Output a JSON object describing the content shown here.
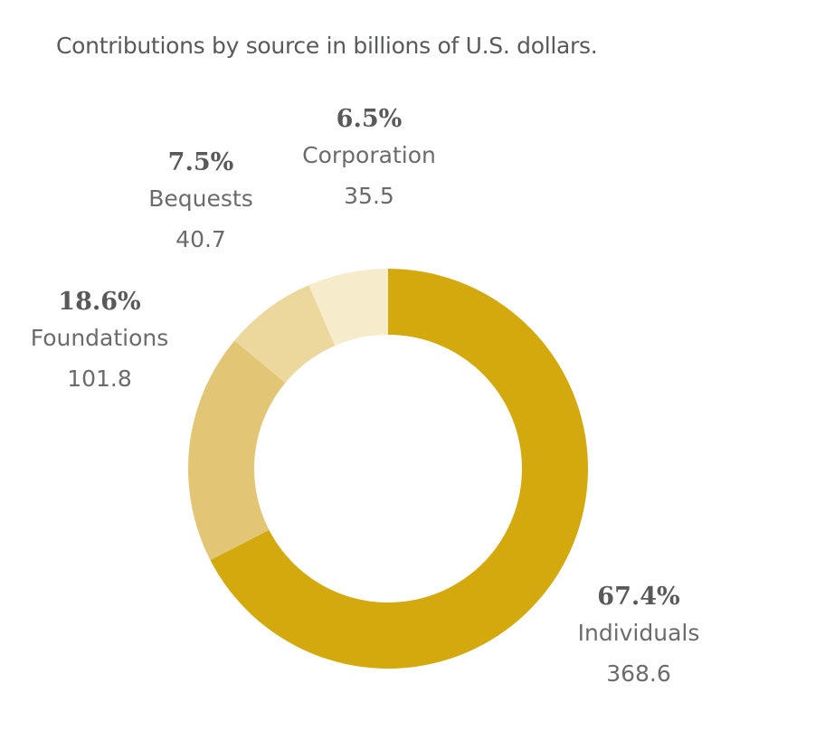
{
  "chart_data": {
    "type": "pie",
    "variant": "donut",
    "title": "Contributions by source in billions of U.S. dollars.",
    "start": "12 o'clock, clockwise",
    "slices": [
      {
        "name": "Individuals",
        "value": 368.6,
        "percent_label": "67.4%",
        "value_label": "368.6",
        "color": "#D4A90E"
      },
      {
        "name": "Foundations",
        "value": 101.8,
        "percent_label": "18.6%",
        "value_label": "101.8",
        "color": "#E3C576"
      },
      {
        "name": "Bequests",
        "value": 40.7,
        "percent_label": "7.5%",
        "value_label": "40.7",
        "color": "#ECD89C"
      },
      {
        "name": "Corporation",
        "value": 35.5,
        "percent_label": "6.5%",
        "value_label": "35.5",
        "color": "#F6EBCB"
      }
    ]
  }
}
